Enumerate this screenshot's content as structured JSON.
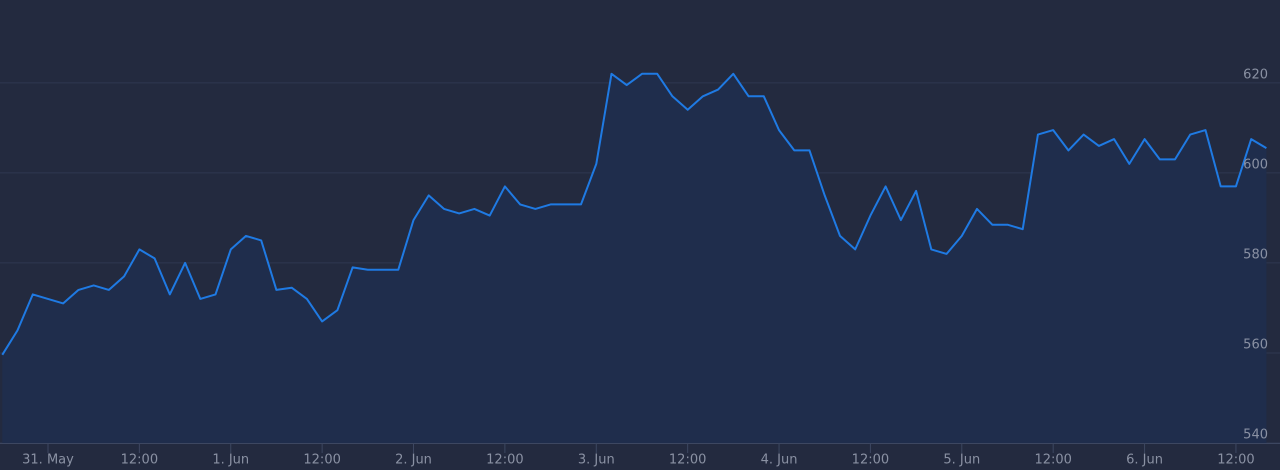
{
  "chart_data": {
    "type": "area",
    "series": [
      {
        "color": "#1f7ae3",
        "fill": "#1f2d4c",
        "values": [
          559.6,
          565,
          573,
          572,
          571,
          574,
          575,
          574,
          577,
          583,
          581,
          573,
          580,
          572,
          573,
          583,
          586,
          585,
          574,
          574.5,
          572,
          567,
          569.5,
          579,
          578.5,
          578.5,
          578.5,
          589.5,
          595,
          592,
          591,
          592,
          590.5,
          597,
          593,
          592,
          593,
          593,
          593,
          602,
          622,
          619.5,
          622,
          622,
          617,
          614,
          617,
          618.5,
          622,
          617,
          617,
          609.5,
          605,
          605,
          595,
          586,
          583,
          590.5,
          597,
          589.5,
          596,
          583,
          582,
          586,
          592,
          588.5,
          588.5,
          587.5,
          608.5,
          609.5,
          605,
          608.5,
          606,
          607.5,
          602,
          607.5,
          603,
          603,
          608.5,
          609.5,
          597,
          597,
          607.5,
          605.5
        ]
      }
    ],
    "xlim": [
      0,
      83
    ],
    "xticks": [
      {
        "value": 3,
        "label": "31. May"
      },
      {
        "value": 9,
        "label": "12:00"
      },
      {
        "value": 15,
        "label": "1. Jun"
      },
      {
        "value": 21,
        "label": "12:00"
      },
      {
        "value": 27,
        "label": "2. Jun"
      },
      {
        "value": 33,
        "label": "12:00"
      },
      {
        "value": 39,
        "label": "3. Jun"
      },
      {
        "value": 45,
        "label": "12:00"
      },
      {
        "value": 51,
        "label": "4. Jun"
      },
      {
        "value": 57,
        "label": "12:00"
      },
      {
        "value": 63,
        "label": "5. Jun"
      },
      {
        "value": 69,
        "label": "12:00"
      },
      {
        "value": 75,
        "label": "6. Jun"
      },
      {
        "value": 81,
        "label": "12:00"
      }
    ],
    "ylim": [
      540,
      638.4
    ],
    "yticks": [
      540,
      560,
      580,
      600,
      620
    ],
    "grid": true
  }
}
